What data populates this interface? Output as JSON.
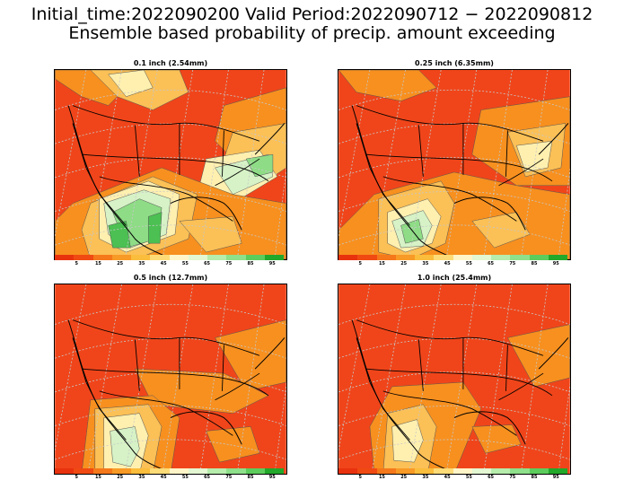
{
  "header": {
    "line1": "Initial_time:2022090200   Valid Period:2022090712 − 2022090812",
    "line2": "Ensemble based probability of precip. amount exceeding"
  },
  "panels": [
    {
      "title": "0.1 inch (2.54mm)"
    },
    {
      "title": "0.25 inch (6.35mm)"
    },
    {
      "title": "0.5 inch (12.7mm)"
    },
    {
      "title": "1.0 inch (25.4mm)"
    }
  ],
  "colorbar": {
    "colors": [
      "#e8320e",
      "#f04a12",
      "#f5781a",
      "#f89a26",
      "#fbbd3c",
      "#fddc78",
      "#fff5c8",
      "#e2f7d2",
      "#b6ecac",
      "#8ee08a",
      "#5ccc5c",
      "#22a82a"
    ],
    "labels": [
      "5",
      "15",
      "25",
      "35",
      "45",
      "55",
      "65",
      "75",
      "85",
      "95"
    ]
  },
  "map_colors": {
    "base": "#f0451a",
    "orange": "#f7901f",
    "light_orange": "#fbc056",
    "yellow": "#fff0b0",
    "pale_green": "#d6f2c6",
    "green": "#8edc86",
    "dark_green": "#4cc052",
    "grid": "#c8c8c8",
    "boundary": "#000000"
  }
}
